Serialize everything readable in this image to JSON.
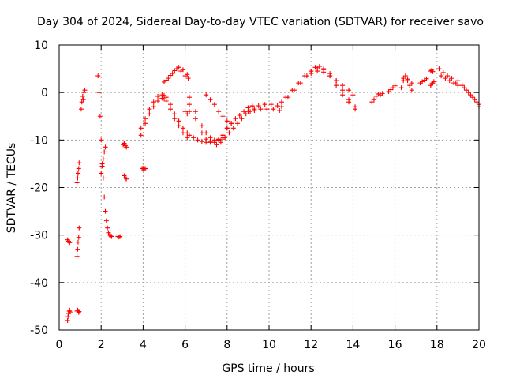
{
  "chart_data": {
    "type": "scatter",
    "title": "Day 304 of 2024, Sidereal Day-to-day VTEC variation (SDTVAR) for receiver savo",
    "xlabel": "GPS time / hours",
    "ylabel": "SDTVAR / TECUs",
    "xlim": [
      0,
      20
    ],
    "ylim": [
      -50,
      10
    ],
    "xticks": [
      0,
      2,
      4,
      6,
      8,
      10,
      12,
      14,
      16,
      18,
      20
    ],
    "yticks": [
      -50,
      -40,
      -30,
      -20,
      -10,
      0,
      10
    ],
    "xtick_labels": [
      "0",
      "2",
      "4",
      "6",
      "8",
      "10",
      "12",
      "14",
      "16",
      "18",
      "20"
    ],
    "ytick_labels": [
      "-50",
      "-40",
      "-30",
      "-20",
      "-10",
      "0",
      "10"
    ],
    "grid": true,
    "marker": "+",
    "color": "#ff0000",
    "series": [
      {
        "name": "s1",
        "x": [
          0.4,
          0.45,
          0.5
        ],
        "y": [
          -31.0,
          -31.3,
          -31.6
        ]
      },
      {
        "name": "s2",
        "x": [
          0.4,
          0.42,
          0.45,
          0.48,
          0.5,
          0.52
        ],
        "y": [
          -48.0,
          -47.2,
          -46.5,
          -46.0,
          -45.8,
          -46.2
        ]
      },
      {
        "name": "s3",
        "x": [
          0.85,
          0.88,
          0.9,
          0.93,
          0.95
        ],
        "y": [
          -46.0,
          -45.8,
          -46.0,
          -46.3,
          -46.1
        ]
      },
      {
        "name": "s4",
        "x": [
          0.85,
          0.88,
          0.9,
          0.93,
          0.95
        ],
        "y": [
          -34.5,
          -33.0,
          -31.5,
          -30.5,
          -28.5
        ]
      },
      {
        "name": "s5",
        "x": [
          0.85,
          0.88,
          0.9,
          0.93,
          0.95
        ],
        "y": [
          -19.0,
          -18.0,
          -17.0,
          -16.0,
          -14.8
        ]
      },
      {
        "name": "s6",
        "x": [
          1.05,
          1.08,
          1.12,
          1.15,
          1.18,
          1.22
        ],
        "y": [
          -3.5,
          -2.0,
          -0.8,
          -1.5,
          0.0,
          0.5
        ]
      },
      {
        "name": "s7",
        "x": [
          1.85,
          1.9,
          1.95,
          2.0,
          2.05,
          2.1,
          2.15,
          2.2,
          2.25,
          2.3,
          2.35,
          2.4,
          2.45,
          2.5
        ],
        "y": [
          3.5,
          0.0,
          -5.0,
          -10.0,
          -15.0,
          -18.0,
          -22.0,
          -25.0,
          -27.0,
          -28.5,
          -29.5,
          -30.0,
          -30.2,
          -30.3
        ]
      },
      {
        "name": "s8",
        "x": [
          2.0,
          2.05,
          2.1,
          2.15,
          2.2
        ],
        "y": [
          -17.0,
          -15.5,
          -14.0,
          -12.5,
          -11.5
        ]
      },
      {
        "name": "s9",
        "x": [
          2.8,
          2.85,
          2.9
        ],
        "y": [
          -30.3,
          -30.4,
          -30.3
        ]
      },
      {
        "name": "s10",
        "x": [
          3.05,
          3.1,
          3.15,
          3.2
        ],
        "y": [
          -11.0,
          -10.7,
          -11.2,
          -11.5
        ]
      },
      {
        "name": "s11",
        "x": [
          3.1,
          3.15,
          3.2
        ],
        "y": [
          -17.5,
          -18.0,
          -18.2
        ]
      },
      {
        "name": "s12",
        "x": [
          3.95,
          4.0,
          4.05,
          4.1
        ],
        "y": [
          -16.0,
          -16.0,
          -16.1,
          -16.0
        ]
      },
      {
        "name": "s13",
        "x": [
          3.9,
          4.1,
          4.3,
          4.5,
          4.7,
          4.9,
          5.0,
          5.1,
          5.3,
          5.5,
          5.7,
          5.9,
          6.1
        ],
        "y": [
          -9.0,
          -6.5,
          -4.5,
          -3.0,
          -1.8,
          -1.2,
          -1.3,
          -1.8,
          -3.5,
          -5.5,
          -7.0,
          -8.5,
          -9.5
        ]
      },
      {
        "name": "s14",
        "x": [
          3.9,
          4.1,
          4.3,
          4.5,
          4.7,
          4.9,
          5.0,
          5.1,
          5.3,
          5.5,
          5.7,
          5.9,
          6.1
        ],
        "y": [
          -7.5,
          -5.5,
          -3.5,
          -2.0,
          -0.8,
          -0.5,
          -0.6,
          -1.0,
          -2.5,
          -4.5,
          -6.0,
          -7.5,
          -8.5
        ]
      },
      {
        "name": "s15",
        "x": [
          5.0,
          5.2,
          5.4,
          5.6,
          5.8,
          6.0,
          6.15
        ],
        "y": [
          2.2,
          3.0,
          4.0,
          5.0,
          4.5,
          3.5,
          3.0
        ]
      },
      {
        "name": "s16",
        "x": [
          5.1,
          5.3,
          5.5,
          5.7,
          5.9,
          6.1
        ],
        "y": [
          2.6,
          3.6,
          4.6,
          5.3,
          4.8,
          3.8
        ]
      },
      {
        "name": "s17",
        "x": [
          6.0,
          6.1,
          6.2
        ],
        "y": [
          -4.0,
          -4.5,
          -4.0
        ]
      },
      {
        "name": "s18",
        "x": [
          6.2,
          6.5,
          6.8,
          7.0,
          7.2,
          7.4,
          7.6,
          7.8,
          8.0
        ],
        "y": [
          -1.0,
          -4.0,
          -7.0,
          -8.5,
          -9.5,
          -10.0,
          -9.8,
          -9.0,
          -7.5
        ]
      },
      {
        "name": "s19",
        "x": [
          6.2,
          6.5,
          6.8,
          7.0,
          7.2,
          7.4,
          7.6,
          7.8
        ],
        "y": [
          -2.5,
          -5.5,
          -8.5,
          -9.8,
          -10.5,
          -10.5,
          -10.0,
          -9.5
        ]
      },
      {
        "name": "s20",
        "x": [
          6.2,
          6.4,
          6.6,
          6.8,
          7.0,
          7.2,
          7.4,
          7.6,
          7.8
        ],
        "y": [
          -9.0,
          -9.5,
          -10.0,
          -10.3,
          -10.5,
          -10.4,
          -10.2,
          -10.0,
          -9.8
        ]
      },
      {
        "name": "s21",
        "x": [
          7.5,
          7.7,
          7.9,
          8.1,
          8.3,
          8.5,
          8.7,
          8.9,
          9.1,
          9.3
        ],
        "y": [
          -11.0,
          -10.5,
          -9.5,
          -8.5,
          -7.5,
          -6.5,
          -5.5,
          -4.5,
          -4.0,
          -3.5
        ]
      },
      {
        "name": "s22",
        "x": [
          7.6,
          7.8,
          8.0,
          8.2,
          8.4,
          8.6,
          8.8,
          9.0,
          9.2
        ],
        "y": [
          -10.0,
          -9.0,
          -7.5,
          -6.5,
          -5.5,
          -4.8,
          -4.0,
          -3.2,
          -2.8
        ]
      },
      {
        "name": "s23",
        "x": [
          7.0,
          7.2,
          7.4,
          7.6,
          7.8,
          8.0,
          8.2
        ],
        "y": [
          -0.5,
          -1.5,
          -2.5,
          -4.0,
          -5.0,
          -6.0,
          -6.5
        ]
      },
      {
        "name": "s24",
        "x": [
          9.2,
          9.5,
          9.8,
          10.1,
          10.4,
          10.6
        ],
        "y": [
          -3.0,
          -2.8,
          -2.5,
          -2.5,
          -2.8,
          -3.0
        ]
      },
      {
        "name": "s25",
        "x": [
          9.0,
          9.3,
          9.6,
          9.9,
          10.2,
          10.5
        ],
        "y": [
          -4.0,
          -3.8,
          -3.5,
          -3.5,
          -3.5,
          -3.8
        ]
      },
      {
        "name": "s26",
        "x": [
          10.6,
          10.9,
          11.2,
          11.5,
          11.8,
          12.0,
          12.2,
          12.4,
          12.6,
          12.9,
          13.2,
          13.5,
          13.8,
          14.1
        ],
        "y": [
          -2.0,
          -1.0,
          0.5,
          2.0,
          3.5,
          4.5,
          5.3,
          5.5,
          5.0,
          4.0,
          2.5,
          0.5,
          -1.5,
          -3.0
        ]
      },
      {
        "name": "s27",
        "x": [
          10.8,
          11.1,
          11.4,
          11.7,
          12.0,
          12.3,
          12.6,
          12.9,
          13.2,
          13.5,
          13.8,
          14.1
        ],
        "y": [
          -1.0,
          0.5,
          2.0,
          3.5,
          4.5,
          5.2,
          4.8,
          3.5,
          1.5,
          -0.5,
          -2.0,
          -3.5
        ]
      },
      {
        "name": "s28",
        "x": [
          12.0,
          12.3,
          12.6,
          12.9,
          13.2,
          13.5,
          13.8,
          14.0
        ],
        "y": [
          4.0,
          4.5,
          4.3,
          3.5,
          2.5,
          1.5,
          0.5,
          -0.5
        ]
      },
      {
        "name": "s29",
        "x": [
          14.9,
          15.0,
          15.1,
          15.2,
          15.3,
          15.4
        ],
        "y": [
          -2.0,
          -1.5,
          -0.8,
          -0.3,
          -0.5,
          -0.2
        ]
      },
      {
        "name": "s30",
        "x": [
          15.7,
          15.8,
          15.9,
          16.0
        ],
        "y": [
          0.2,
          0.6,
          1.0,
          1.4
        ]
      },
      {
        "name": "s31",
        "x": [
          16.3,
          16.4,
          16.5,
          16.6,
          16.7,
          16.8
        ],
        "y": [
          1.0,
          2.5,
          3.5,
          2.5,
          1.5,
          0.5
        ]
      },
      {
        "name": "s32",
        "x": [
          16.4,
          16.6,
          16.8
        ],
        "y": [
          3.0,
          2.8,
          2.0
        ]
      },
      {
        "name": "s33",
        "x": [
          17.2,
          17.3,
          17.4,
          17.5
        ],
        "y": [
          2.0,
          2.3,
          2.6,
          2.9
        ]
      },
      {
        "name": "s34",
        "x": [
          17.7,
          17.75,
          17.8
        ],
        "y": [
          4.5,
          4.7,
          4.4
        ]
      },
      {
        "name": "s35",
        "x": [
          17.7,
          17.75,
          17.8,
          17.85
        ],
        "y": [
          1.5,
          1.8,
          2.0,
          2.3
        ]
      },
      {
        "name": "s36",
        "x": [
          18.1,
          18.3,
          18.5,
          18.7,
          18.9
        ],
        "y": [
          5.0,
          4.2,
          3.5,
          3.0,
          2.0
        ]
      },
      {
        "name": "s37",
        "x": [
          18.2,
          18.4,
          18.6,
          18.8,
          19.0
        ],
        "y": [
          3.5,
          3.0,
          2.5,
          2.0,
          1.5
        ]
      },
      {
        "name": "s38",
        "x": [
          19.0,
          19.2,
          19.4,
          19.6,
          19.8,
          20.0
        ],
        "y": [
          2.5,
          1.5,
          0.5,
          -0.5,
          -1.5,
          -3.0
        ]
      },
      {
        "name": "s39",
        "x": [
          19.3,
          19.5,
          19.7,
          19.9,
          20.0
        ],
        "y": [
          1.0,
          0.0,
          -1.0,
          -2.0,
          -2.5
        ]
      }
    ]
  }
}
